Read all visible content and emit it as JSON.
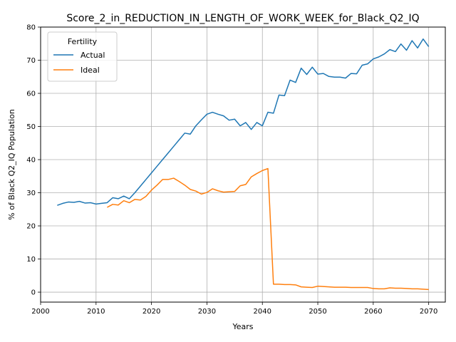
{
  "chart_data": {
    "type": "line",
    "title": "Score_2_in_REDUCTION_IN_LENGTH_OF_WORK_WEEK_for_Black_Q2_IQ",
    "xlabel": "Years",
    "ylabel": "% of Black Q2_IQ Population",
    "xlim": [
      2000,
      2073
    ],
    "ylim": [
      -3,
      80
    ],
    "xticks": [
      2000,
      2010,
      2020,
      2030,
      2040,
      2050,
      2060,
      2070
    ],
    "yticks": [
      0,
      10,
      20,
      30,
      40,
      50,
      60,
      70,
      80
    ],
    "grid": true,
    "legend": {
      "title": "Fertility",
      "placement": "top-left"
    },
    "series": [
      {
        "name": "Actual",
        "color": "#1f77b4",
        "x": [
          2003,
          2004,
          2005,
          2006,
          2007,
          2008,
          2009,
          2010,
          2011,
          2012,
          2013,
          2014,
          2015,
          2016,
          2017,
          2018,
          2019,
          2020,
          2021,
          2022,
          2023,
          2024,
          2025,
          2026,
          2027,
          2028,
          2029,
          2030,
          2031,
          2032,
          2033,
          2034,
          2035,
          2036,
          2037,
          2038,
          2039,
          2040,
          2041,
          2042,
          2043,
          2044,
          2045,
          2046,
          2047,
          2048,
          2049,
          2050,
          2051,
          2052,
          2053,
          2054,
          2055,
          2056,
          2057,
          2058,
          2059,
          2060,
          2061,
          2062,
          2063,
          2064,
          2065,
          2066,
          2067,
          2068,
          2069,
          2070
        ],
        "values": [
          26.2,
          26.8,
          27.2,
          27.1,
          27.4,
          26.9,
          27.0,
          26.6,
          26.8,
          27.0,
          28.5,
          28.2,
          29.0,
          28.2,
          30.0,
          32.0,
          34.0,
          36.0,
          38.0,
          40.0,
          42.0,
          44.0,
          46.0,
          48.0,
          47.7,
          50.2,
          52.0,
          53.7,
          54.3,
          53.7,
          53.2,
          51.9,
          52.2,
          50.2,
          51.2,
          49.1,
          51.2,
          50.2,
          54.3,
          54.0,
          59.5,
          59.3,
          64.0,
          63.3,
          67.6,
          65.7,
          67.9,
          65.8,
          66.0,
          65.1,
          64.9,
          64.9,
          64.6,
          66.0,
          65.9,
          68.5,
          68.9,
          70.4,
          71.0,
          71.9,
          73.2,
          72.6,
          74.9,
          73.0,
          75.9,
          73.7,
          76.4,
          74.1
        ]
      },
      {
        "name": "Ideal",
        "color": "#ff7f0e",
        "x": [
          2012,
          2013,
          2014,
          2015,
          2016,
          2017,
          2018,
          2019,
          2020,
          2021,
          2022,
          2023,
          2024,
          2025,
          2026,
          2027,
          2028,
          2029,
          2030,
          2031,
          2032,
          2033,
          2034,
          2035,
          2036,
          2037,
          2038,
          2039,
          2040,
          2041,
          2042,
          2043,
          2044,
          2045,
          2046,
          2047,
          2048,
          2049,
          2050,
          2051,
          2052,
          2053,
          2054,
          2055,
          2056,
          2057,
          2058,
          2059,
          2060,
          2061,
          2062,
          2063,
          2064,
          2065,
          2066,
          2067,
          2068,
          2069,
          2070
        ],
        "values": [
          25.6,
          26.5,
          26.3,
          27.6,
          27.0,
          28.0,
          27.8,
          28.9,
          30.8,
          32.3,
          34.0,
          34.0,
          34.4,
          33.4,
          32.3,
          31.0,
          30.5,
          29.6,
          30.1,
          31.2,
          30.6,
          30.2,
          30.3,
          30.4,
          32.1,
          32.5,
          34.8,
          35.8,
          36.7,
          37.3,
          2.4,
          2.4,
          2.3,
          2.3,
          2.2,
          1.6,
          1.5,
          1.4,
          1.8,
          1.7,
          1.6,
          1.5,
          1.5,
          1.5,
          1.4,
          1.4,
          1.4,
          1.4,
          1.1,
          1.0,
          1.0,
          1.3,
          1.2,
          1.2,
          1.1,
          1.0,
          1.0,
          0.9,
          0.8
        ]
      }
    ]
  }
}
